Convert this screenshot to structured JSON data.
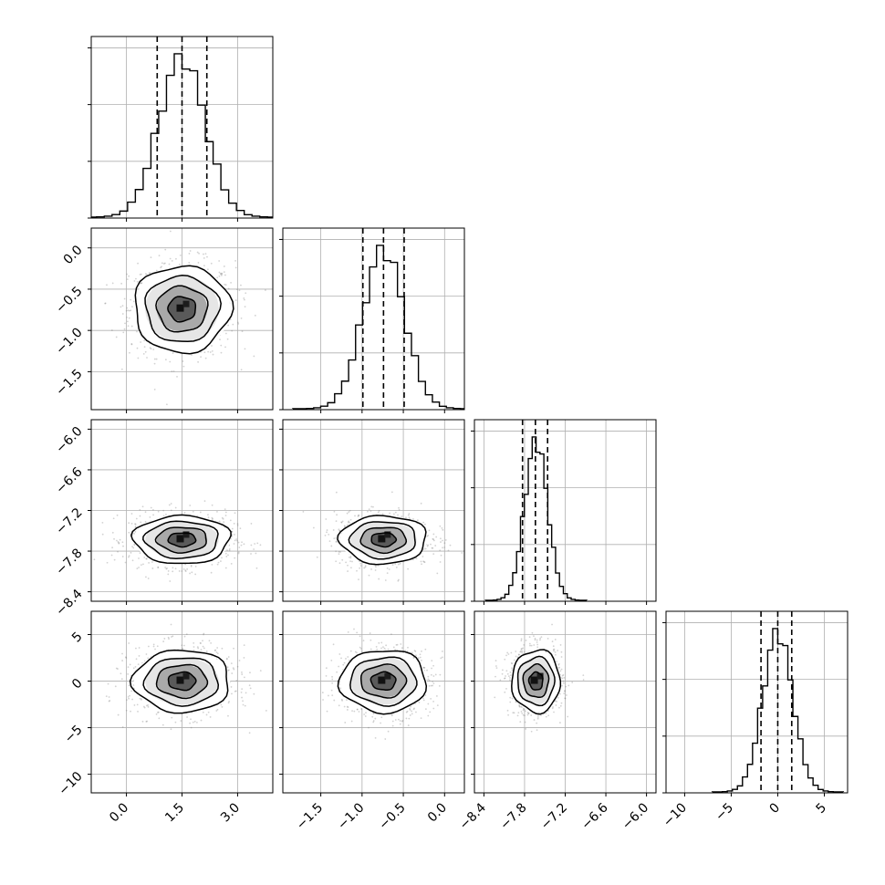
{
  "chart_data": {
    "type": "corner",
    "parameters": [
      {
        "range": [
          -0.95,
          3.95
        ],
        "ticks": [
          0.0,
          1.5,
          3.0
        ],
        "tick_labels": [
          "0.0",
          "1.5",
          "3.0"
        ],
        "mean": 1.5,
        "sd": 0.62,
        "quantiles": [
          0.83,
          1.5,
          2.17
        ]
      },
      {
        "range": [
          -1.96,
          0.24
        ],
        "ticks": [
          -1.5,
          -1.0,
          -0.5,
          0.0
        ],
        "tick_labels": [
          "−1.5",
          "−1.0",
          "−0.5",
          "0.0"
        ],
        "mean": -0.74,
        "sd": 0.25,
        "quantiles": [
          -0.99,
          -0.74,
          -0.49
        ]
      },
      {
        "range": [
          -8.54,
          -5.86
        ],
        "ticks": [
          -8.4,
          -7.8,
          -7.2,
          -6.6,
          -6.0
        ],
        "tick_labels": [
          "−8.4",
          "−7.8",
          "−7.2",
          "−6.6",
          "−6.0"
        ],
        "mean": -7.63,
        "sd": 0.17,
        "quantiles": [
          -7.83,
          -7.64,
          -7.46
        ]
      },
      {
        "range": [
          -12.0,
          7.5
        ],
        "ticks": [
          -10,
          -5,
          0,
          5
        ],
        "tick_labels": [
          "−10",
          "−5",
          "0",
          "5"
        ],
        "mean": 0.0,
        "sd": 1.6,
        "quantiles": [
          -1.8,
          0.0,
          1.5
        ]
      }
    ],
    "diag_hist_ticks": 3,
    "grid": true,
    "contours_per_panel": 4,
    "colors": {
      "line": "#000000",
      "grid": "#b0b0b0",
      "scatter": "#7f7f7f",
      "background": "#ffffff"
    }
  }
}
